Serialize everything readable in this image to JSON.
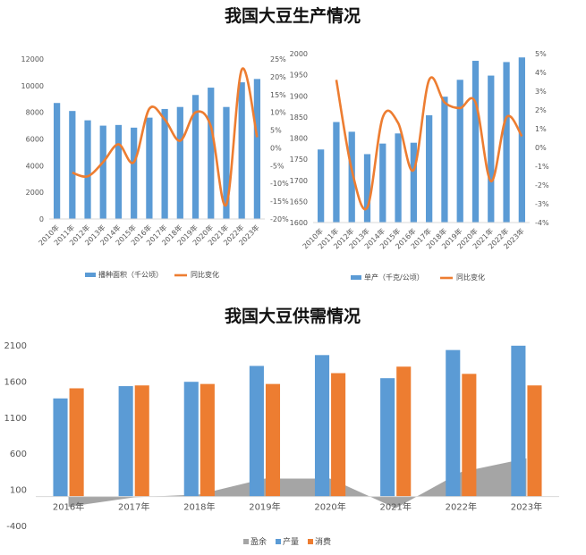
{
  "titles": {
    "top": "我国大豆生产情况",
    "bottom": "我国大豆供需情况"
  },
  "colors": {
    "bar": "#5b9bd5",
    "line": "#ed7d31",
    "consume": "#ed7d31",
    "surplus": "#a5a5a5"
  },
  "chart_data": [
    {
      "type": "bar",
      "title": "",
      "categories": [
        "2010年",
        "2011年",
        "2012年",
        "2013年",
        "2014年",
        "2015年",
        "2016年",
        "2017年",
        "2018年",
        "2019年",
        "2020年",
        "2021年",
        "2022年",
        "2023年"
      ],
      "series": [
        {
          "name": "播种面积（千公顷）",
          "axis": "left",
          "type": "bar",
          "values": [
            8700,
            8100,
            7400,
            7000,
            7050,
            6850,
            7600,
            8250,
            8400,
            9300,
            9850,
            8400,
            10250,
            10500
          ]
        },
        {
          "name": "同比变化",
          "axis": "right",
          "type": "line",
          "values": [
            null,
            -7,
            -8,
            -4,
            1,
            -4,
            11,
            8,
            2,
            10,
            6,
            -16,
            22,
            3
          ]
        }
      ],
      "ylim": [
        0,
        12000
      ],
      "yticks": [
        "0",
        "2000",
        "4000",
        "6000",
        "8000",
        "10000",
        "12000"
      ],
      "y2lim": [
        -20,
        25
      ],
      "y2ticks": [
        "-20%",
        "-15%",
        "-10%",
        "-5%",
        "0%",
        "5%",
        "10%",
        "15%",
        "20%",
        "25%"
      ],
      "legend": "bottom"
    },
    {
      "type": "bar",
      "title": "",
      "categories": [
        "2010年",
        "2011年",
        "2012年",
        "2013年",
        "2014年",
        "2015年",
        "2016年",
        "2017年",
        "2018年",
        "2019年",
        "2020年",
        "2021年",
        "2022年",
        "2023年"
      ],
      "series": [
        {
          "name": "单产（千克/公顷）",
          "axis": "left",
          "type": "bar",
          "values": [
            1773,
            1838,
            1815,
            1762,
            1787,
            1811,
            1789,
            1854,
            1898,
            1938,
            1983,
            1948,
            1980,
            1991
          ]
        },
        {
          "name": "同比变化",
          "axis": "right",
          "type": "line",
          "values": [
            null,
            3.6,
            -1.2,
            -3.2,
            1.6,
            1.3,
            -1.2,
            3.6,
            2.4,
            2.1,
            2.4,
            -1.8,
            1.6,
            0.6
          ]
        }
      ],
      "ylim": [
        1600,
        2000
      ],
      "yticks": [
        "1600",
        "1650",
        "1700",
        "1750",
        "1800",
        "1850",
        "1900",
        "1950",
        "2000"
      ],
      "y2lim": [
        -4,
        5
      ],
      "y2ticks": [
        "-4%",
        "-3%",
        "-2%",
        "-1%",
        "0%",
        "1%",
        "2%",
        "3%",
        "4%",
        "5%"
      ],
      "legend": "bottom"
    },
    {
      "type": "bar",
      "title": "",
      "categories": [
        "2016年",
        "2017年",
        "2018年",
        "2019年",
        "2020年",
        "2021年",
        "2022年",
        "2023年"
      ],
      "series": [
        {
          "name": "盈余",
          "type": "area",
          "values": [
            -140,
            -10,
            30,
            250,
            250,
            -160,
            340,
            530
          ]
        },
        {
          "name": "产量",
          "type": "bar",
          "values": [
            1360,
            1530,
            1590,
            1810,
            1960,
            1640,
            2030,
            2090
          ]
        },
        {
          "name": "消费",
          "type": "bar",
          "values": [
            1500,
            1540,
            1560,
            1560,
            1710,
            1800,
            1700,
            1540
          ]
        }
      ],
      "ylim": [
        -400,
        2100
      ],
      "yticks": [
        "-400",
        "100",
        "600",
        "1100",
        "1600",
        "2100"
      ],
      "legend": "bottom"
    }
  ]
}
